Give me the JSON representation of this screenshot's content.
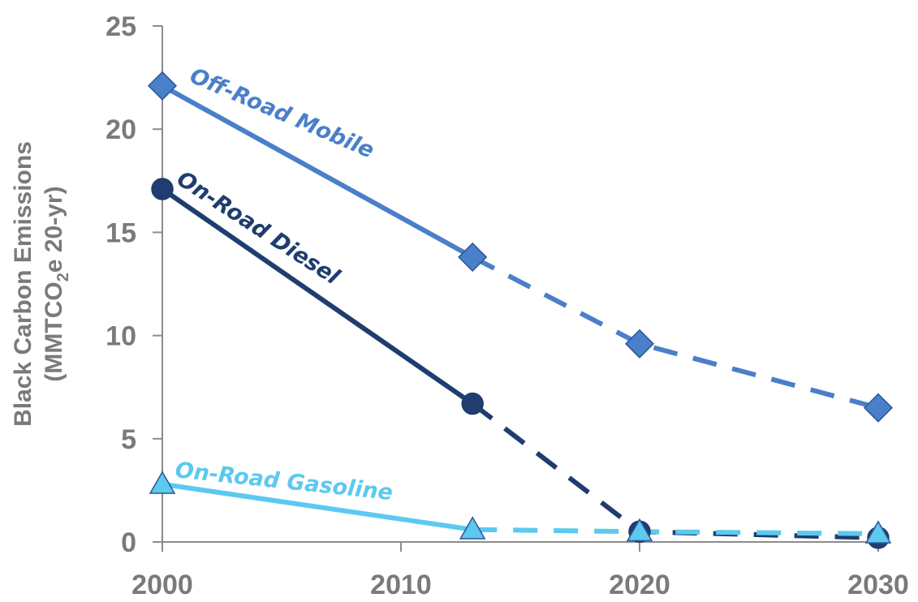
{
  "chart_data": {
    "type": "line",
    "title": "",
    "xlabel": "",
    "ylabel_line1": "Black Carbon Emissions",
    "ylabel_line2_parts": [
      "(MMTCO",
      "2",
      "e 20-yr)"
    ],
    "x_ticks": [
      2000,
      2010,
      2020,
      2030
    ],
    "y_ticks": [
      0,
      5,
      10,
      15,
      20,
      25
    ],
    "xlim": [
      2000,
      2030
    ],
    "ylim": [
      0,
      25
    ],
    "grid": false,
    "legend": "inline labels",
    "series": [
      {
        "name": "Off-Road Mobile",
        "color": "#4a7fc9",
        "marker": "diamond",
        "solid": [
          [
            2000,
            22.1
          ],
          [
            2013,
            13.8
          ]
        ],
        "dashed": [
          [
            2013,
            13.8
          ],
          [
            2020,
            9.6
          ],
          [
            2030,
            6.5
          ]
        ]
      },
      {
        "name": "On-Road Diesel",
        "color": "#1f3d6e",
        "marker": "circle",
        "solid": [
          [
            2000,
            17.1
          ],
          [
            2013,
            6.7
          ]
        ],
        "dashed": [
          [
            2013,
            6.7
          ],
          [
            2020,
            0.5
          ],
          [
            2030,
            0.2
          ]
        ]
      },
      {
        "name": "On-Road Gasoline",
        "color": "#5cc9ef",
        "marker": "triangle",
        "solid": [
          [
            2000,
            2.8
          ],
          [
            2013,
            0.6
          ]
        ],
        "dashed": [
          [
            2013,
            0.6
          ],
          [
            2020,
            0.5
          ],
          [
            2030,
            0.4
          ]
        ]
      }
    ]
  }
}
